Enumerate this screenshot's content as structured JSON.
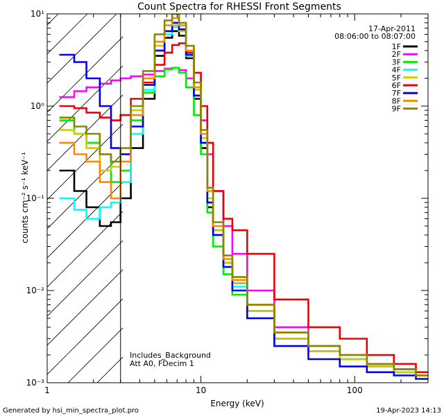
{
  "chart_data": {
    "type": "line",
    "title": "Count Spectra for RHESSI Front Segments",
    "xlabel": "Energy (keV)",
    "ylabel": "counts cm⁻² s⁻¹ keV⁻¹",
    "xscale": "log",
    "yscale": "log",
    "xlim": [
      1,
      300
    ],
    "ylim": [
      0.001,
      10
    ],
    "x_ticks": [
      {
        "value": 1,
        "label": "1"
      },
      {
        "value": 10,
        "label": "10"
      },
      {
        "value": 100,
        "label": "100"
      }
    ],
    "y_ticks": [
      {
        "value": 10,
        "label": "10¹"
      },
      {
        "value": 1,
        "label": "10⁰"
      },
      {
        "value": 0.1,
        "label": "10⁻¹"
      },
      {
        "value": 0.01,
        "label": "10⁻²"
      },
      {
        "value": 0.001,
        "label": "10⁻³"
      }
    ],
    "threshold_energy": 3,
    "date": "17-Apr-2011",
    "time_range": "08:06:00 to 08:07:00",
    "annotation_lines": [
      "Includes_Background",
      "Att A0, FDecim 1"
    ],
    "legend_position": "top-right",
    "series": [
      {
        "name": "1F",
        "color": "#000000",
        "x": [
          1.2,
          1.5,
          1.8,
          2.2,
          2.6,
          3.0,
          3.5,
          4.2,
          5.0,
          5.8,
          6.5,
          7.2,
          8.0,
          9.0,
          10,
          11,
          12,
          14,
          16,
          20,
          30,
          50,
          80,
          120,
          180,
          250
        ],
        "values": [
          0.2,
          0.12,
          0.08,
          0.05,
          0.055,
          0.1,
          0.35,
          1.2,
          3.5,
          5.5,
          6.5,
          5.8,
          3.3,
          1.2,
          0.35,
          0.08,
          0.045,
          0.02,
          0.012,
          0.006,
          0.003,
          0.0022,
          0.0018,
          0.0015,
          0.0013,
          0.0012
        ]
      },
      {
        "name": "2F",
        "color": "#ff00ff",
        "x": [
          1.2,
          1.5,
          1.8,
          2.2,
          2.6,
          3.0,
          3.5,
          4.2,
          5.0,
          5.8,
          6.5,
          7.2,
          8.0,
          9.0,
          10,
          11,
          12,
          14,
          16,
          20,
          30,
          50,
          80,
          120,
          180,
          250
        ],
        "values": [
          1.25,
          1.45,
          1.6,
          1.75,
          1.9,
          2.0,
          2.1,
          2.2,
          2.4,
          2.55,
          2.6,
          2.45,
          2.0,
          1.3,
          0.7,
          0.3,
          0.12,
          0.05,
          0.025,
          0.01,
          0.004,
          0.0025,
          0.002,
          0.0016,
          0.0014,
          0.0012
        ]
      },
      {
        "name": "3F",
        "color": "#00ee00",
        "x": [
          1.2,
          1.5,
          1.8,
          2.2,
          2.6,
          3.0,
          3.5,
          4.2,
          5.0,
          5.8,
          6.5,
          7.2,
          8.0,
          9.0,
          10,
          11,
          12,
          14,
          16,
          20,
          30,
          50,
          80,
          120,
          180,
          250
        ],
        "values": [
          0.7,
          0.5,
          0.4,
          0.3,
          0.15,
          0.2,
          0.7,
          1.4,
          2.1,
          2.5,
          2.6,
          2.3,
          1.6,
          0.8,
          0.3,
          0.07,
          0.03,
          0.015,
          0.009,
          0.005,
          0.003,
          0.0022,
          0.0018,
          0.0015,
          0.0013,
          0.0012
        ]
      },
      {
        "name": "4F",
        "color": "#00ffff",
        "x": [
          1.2,
          1.5,
          1.8,
          2.2,
          2.6,
          3.0,
          3.5,
          4.2,
          5.0,
          5.8,
          6.5,
          7.2,
          8.0,
          9.0,
          10,
          11,
          12,
          14,
          16,
          20,
          30,
          50,
          80,
          120,
          180,
          250
        ],
        "values": [
          0.1,
          0.075,
          0.06,
          0.08,
          0.09,
          0.15,
          0.5,
          1.5,
          4.0,
          6.0,
          7.2,
          6.5,
          3.5,
          1.3,
          0.4,
          0.09,
          0.04,
          0.018,
          0.011,
          0.006,
          0.003,
          0.0022,
          0.0018,
          0.0015,
          0.0013,
          0.0012
        ]
      },
      {
        "name": "5F",
        "color": "#cccc00",
        "x": [
          1.2,
          1.5,
          1.8,
          2.2,
          2.6,
          3.0,
          3.5,
          4.2,
          5.0,
          5.8,
          6.5,
          7.2,
          8.0,
          9.0,
          10,
          11,
          12,
          14,
          16,
          20,
          30,
          50,
          80,
          120,
          180,
          250
        ],
        "values": [
          0.55,
          0.5,
          0.35,
          0.2,
          0.22,
          0.3,
          0.9,
          2.0,
          4.5,
          6.5,
          7.5,
          6.5,
          3.8,
          1.5,
          0.45,
          0.1,
          0.045,
          0.02,
          0.012,
          0.006,
          0.003,
          0.0022,
          0.0018,
          0.0015,
          0.0013,
          0.0012
        ]
      },
      {
        "name": "6F",
        "color": "#ee0000",
        "x": [
          1.2,
          1.5,
          1.8,
          2.2,
          2.6,
          3.0,
          3.5,
          4.2,
          5.0,
          5.8,
          6.5,
          7.2,
          8.0,
          9.0,
          10,
          11,
          12,
          14,
          16,
          20,
          30,
          50,
          80,
          120,
          180,
          250
        ],
        "values": [
          1.0,
          0.95,
          0.85,
          0.75,
          0.7,
          0.8,
          1.2,
          1.8,
          2.8,
          3.8,
          4.6,
          4.8,
          3.8,
          2.3,
          1.0,
          0.4,
          0.12,
          0.06,
          0.045,
          0.025,
          0.008,
          0.004,
          0.003,
          0.002,
          0.0016,
          0.0013
        ]
      },
      {
        "name": "7F",
        "color": "#0000ee",
        "x": [
          1.2,
          1.5,
          1.8,
          2.2,
          2.6,
          3.0,
          3.5,
          4.2,
          5.0,
          5.8,
          6.5,
          7.2,
          8.0,
          9.0,
          10,
          11,
          12,
          14,
          16,
          20,
          30,
          50,
          80,
          120,
          180,
          250
        ],
        "values": [
          3.6,
          3.0,
          2.0,
          1.0,
          0.35,
          0.3,
          0.6,
          1.7,
          4.0,
          6.5,
          8.0,
          6.8,
          3.6,
          1.3,
          0.4,
          0.09,
          0.04,
          0.018,
          0.01,
          0.005,
          0.0025,
          0.0018,
          0.0015,
          0.0013,
          0.0012,
          0.0011
        ]
      },
      {
        "name": "8F",
        "color": "#ff8800",
        "x": [
          1.2,
          1.5,
          1.8,
          2.2,
          2.6,
          3.0,
          3.5,
          4.2,
          5.0,
          5.8,
          6.5,
          7.2,
          8.0,
          9.0,
          10,
          11,
          12,
          14,
          16,
          20,
          30,
          50,
          80,
          120,
          180,
          250
        ],
        "values": [
          0.4,
          0.3,
          0.25,
          0.15,
          0.1,
          0.25,
          0.8,
          2.0,
          5.0,
          7.5,
          9.0,
          7.5,
          4.0,
          1.6,
          0.5,
          0.12,
          0.05,
          0.022,
          0.013,
          0.007,
          0.0035,
          0.0025,
          0.002,
          0.0016,
          0.0014,
          0.0012
        ]
      },
      {
        "name": "9F",
        "color": "#888800",
        "x": [
          1.2,
          1.5,
          1.8,
          2.2,
          2.6,
          3.0,
          3.5,
          4.2,
          5.0,
          5.8,
          6.5,
          7.2,
          8.0,
          9.0,
          10,
          11,
          12,
          14,
          16,
          20,
          30,
          50,
          80,
          120,
          180,
          250
        ],
        "values": [
          0.75,
          0.6,
          0.5,
          0.3,
          0.25,
          0.35,
          1.0,
          2.4,
          6.0,
          8.5,
          10.0,
          8.0,
          4.5,
          1.8,
          0.55,
          0.13,
          0.055,
          0.024,
          0.014,
          0.007,
          0.0035,
          0.0025,
          0.002,
          0.0016,
          0.0014,
          0.0012
        ]
      }
    ]
  },
  "footer": {
    "generated_by": "Generated by hsi_min_spectra_plot.pro",
    "timestamp": "19-Apr-2023 14:13"
  }
}
